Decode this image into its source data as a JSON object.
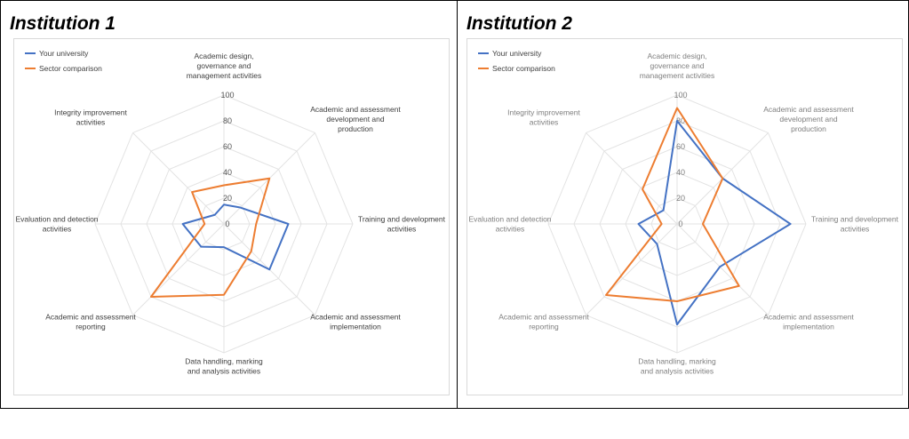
{
  "chart_data": [
    {
      "type": "radar",
      "title": "Institution 1",
      "categories": [
        "Academic design, governance and management activities",
        "Academic and assessment development and production",
        "Training and development activities",
        "Academic and assessment implementation",
        "Data handling, marking and analysis activities",
        "Academic and assessment reporting",
        "Evaluation and detection activities",
        "Integrity improvement activities"
      ],
      "series": [
        {
          "name": "Your university",
          "color": "#4472C4",
          "values": [
            15,
            18,
            50,
            50,
            18,
            25,
            32,
            10
          ]
        },
        {
          "name": "Sector comparison",
          "color": "#ED7D31",
          "values": [
            30,
            50,
            25,
            30,
            55,
            80,
            15,
            35
          ]
        }
      ],
      "ticks": [
        "0",
        "20",
        "40",
        "60",
        "80",
        "100"
      ],
      "rlim": [
        0,
        100
      ],
      "grid": true,
      "legend_position": "top-left"
    },
    {
      "type": "radar",
      "title": "Institution 2",
      "categories": [
        "Academic design, governance and management activities",
        "Academic and assessment development and production",
        "Training and development activities",
        "Academic and assessment implementation",
        "Data handling, marking and analysis activities",
        "Academic and assessment reporting",
        "Evaluation and detection activities",
        "Integrity improvement activities"
      ],
      "series": [
        {
          "name": "Your university",
          "color": "#4472C4",
          "values": [
            80,
            50,
            88,
            47,
            78,
            22,
            30,
            15
          ]
        },
        {
          "name": "Sector comparison",
          "color": "#ED7D31",
          "values": [
            90,
            50,
            20,
            68,
            60,
            78,
            12,
            38
          ]
        }
      ],
      "ticks": [
        "0",
        "20",
        "40",
        "60",
        "80",
        "100"
      ],
      "rlim": [
        0,
        100
      ],
      "grid": true,
      "legend_position": "top-left"
    }
  ]
}
